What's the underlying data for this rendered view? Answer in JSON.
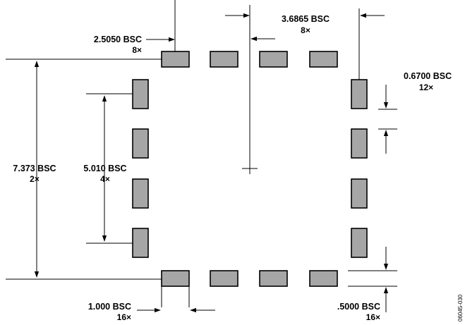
{
  "dimensions": {
    "pitch_top": {
      "value": "2.5050 BSC",
      "count": "8×"
    },
    "span_top": {
      "value": "3.6865 BSC",
      "count": "8×"
    },
    "pad_length": {
      "value": "0.6700 BSC",
      "count": "12×"
    },
    "outer_height": {
      "value": "7.373 BSC",
      "count": "2×"
    },
    "inner_height": {
      "value": "5.010 BSC",
      "count": "4×"
    },
    "pad_width": {
      "value": "1.000 BSC",
      "count": "16×"
    },
    "pad_spacing": {
      "value": ".5000 BSC",
      "count": "16×"
    }
  },
  "figure_id": "06045-030",
  "colors": {
    "pad_fill": "#a6a6a6",
    "line": "#000000"
  }
}
